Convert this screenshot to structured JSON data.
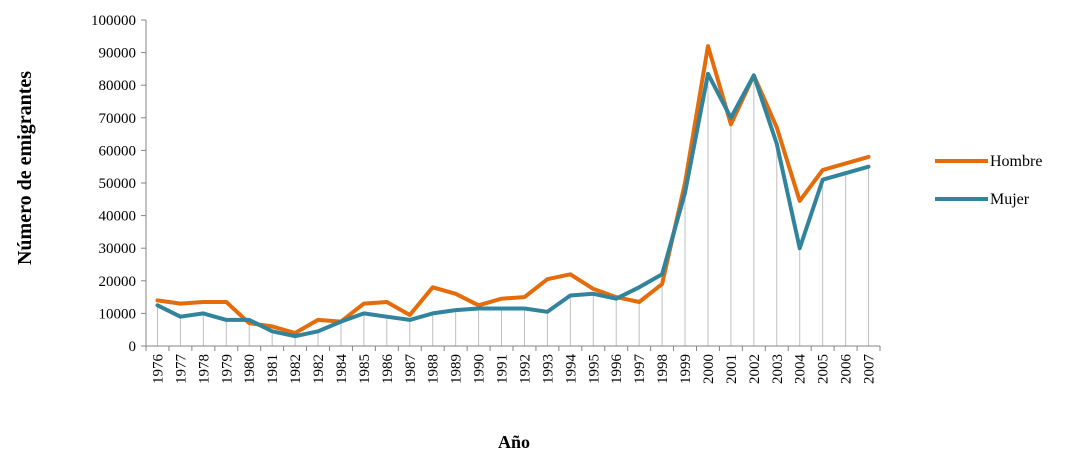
{
  "chart_data": {
    "type": "line",
    "title": "",
    "xlabel": "Año",
    "ylabel": "Número de emigrantes",
    "ylim": [
      0,
      100000
    ],
    "yticks": [
      "0",
      "10000",
      "20000",
      "30000",
      "40000",
      "50000",
      "60000",
      "70000",
      "80000",
      "90000",
      "100000"
    ],
    "grid": "vertical drop lines from lower series to axis",
    "legend_position": "right",
    "categories": [
      "1976",
      "1977",
      "1978",
      "1979",
      "1980",
      "1981",
      "1982",
      "1982",
      "1984",
      "1985",
      "1986",
      "1987",
      "1988",
      "1989",
      "1990",
      "1991",
      "1992",
      "1993",
      "1994",
      "1995",
      "1996",
      "1997",
      "1998",
      "1999",
      "2000",
      "2001",
      "2002",
      "2003",
      "2004",
      "2005",
      "2006",
      "2007"
    ],
    "series": [
      {
        "name": "Hombre",
        "color": "#E46C0A",
        "values": [
          14000,
          13000,
          13500,
          13500,
          7000,
          6000,
          4000,
          8000,
          7500,
          13000,
          13500,
          9500,
          18000,
          16000,
          12500,
          14500,
          15000,
          20500,
          22000,
          17500,
          15000,
          13500,
          19000,
          50000,
          92000,
          68000,
          83000,
          67000,
          44500,
          54000,
          56000,
          58000
        ]
      },
      {
        "name": "Mujer",
        "color": "#31849B",
        "values": [
          12500,
          9000,
          10000,
          8000,
          8000,
          4500,
          3000,
          4500,
          7500,
          10000,
          9000,
          8000,
          10000,
          11000,
          11500,
          11500,
          11500,
          10500,
          15500,
          16000,
          14500,
          18000,
          22000,
          47000,
          83500,
          70000,
          83000,
          62000,
          30000,
          51000,
          53000,
          55000
        ]
      }
    ]
  }
}
